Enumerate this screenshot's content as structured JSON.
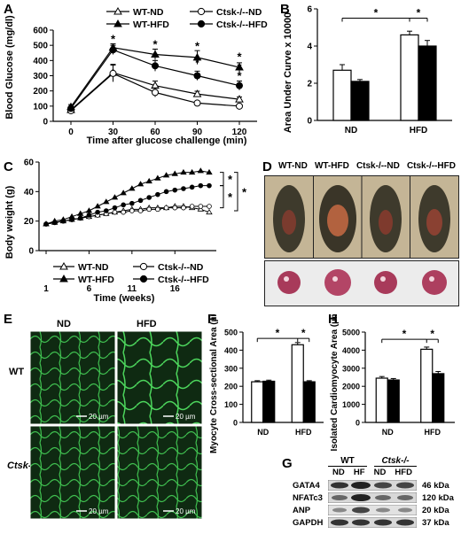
{
  "panels": {
    "A": {
      "label": "A",
      "legend": [
        "WT-ND",
        "WT-HFD",
        "Ctsk-/--ND",
        "Ctsk-/--HFD"
      ],
      "ylabel": "Blood Glucose (mg/dl)",
      "xlabel": "Time after glucose challenge (min)"
    },
    "B": {
      "label": "B",
      "ylabel": "Area Under Curve x 10000"
    },
    "C": {
      "label": "C",
      "ylabel": "Body weight (g)",
      "xlabel": "Time (weeks)",
      "legend": [
        "WT-ND",
        "WT-HFD",
        "Ctsk-/--ND",
        "Ctsk-/--HFD"
      ]
    },
    "D": {
      "label": "D",
      "groups": [
        "WT-ND",
        "WT-HFD",
        "Ctsk-/--ND",
        "Ctsk-/--HFD"
      ]
    },
    "E": {
      "label": "E",
      "cols": [
        "ND",
        "HFD"
      ],
      "rows": [
        "WT",
        "Ctsk-/-"
      ],
      "scale": "20 µm"
    },
    "F": {
      "label": "F",
      "ylabel": "Myocyte Cross-sectional Area (µm²)"
    },
    "G": {
      "label": "G",
      "groups": [
        "WT",
        "Ctsk-/-"
      ],
      "lanes": [
        "ND",
        "HF",
        "ND",
        "HFD"
      ],
      "bands": [
        {
          "name": "GATA4",
          "size": "46 kDa"
        },
        {
          "name": "NFATc3",
          "size": "120 kDa"
        },
        {
          "name": "ANP",
          "size": "20 kDa"
        },
        {
          "name": "GAPDH",
          "size": "37 kDa"
        }
      ]
    },
    "H": {
      "label": "H",
      "ylabel": "Isolated Cardiomyocyte Area (µm²)"
    }
  },
  "chart_data": [
    {
      "id": "A",
      "type": "line",
      "x": [
        0,
        30,
        60,
        90,
        120
      ],
      "xlabel": "Time after glucose challenge (min)",
      "ylabel": "Blood Glucose (mg/dl)",
      "ylim": [
        0,
        600
      ],
      "yticks": [
        0,
        100,
        200,
        300,
        400,
        500,
        600
      ],
      "series": [
        {
          "name": "WT-ND",
          "values": [
            75,
            320,
            235,
            180,
            145
          ],
          "err": [
            12,
            55,
            30,
            18,
            15
          ],
          "marker": "triangle-open"
        },
        {
          "name": "WT-HFD",
          "values": [
            95,
            485,
            440,
            420,
            355
          ],
          "err": [
            15,
            25,
            35,
            45,
            30
          ],
          "marker": "triangle-filled"
        },
        {
          "name": "Ctsk-/--ND",
          "values": [
            70,
            315,
            190,
            120,
            100
          ],
          "err": [
            10,
            55,
            30,
            12,
            10
          ],
          "marker": "circle-open"
        },
        {
          "name": "Ctsk-/--HFD",
          "values": [
            85,
            470,
            365,
            300,
            235
          ],
          "err": [
            12,
            30,
            35,
            30,
            30
          ],
          "marker": "circle-filled"
        }
      ],
      "annotations": [
        "*",
        "*",
        "*",
        "*",
        "*",
        "*",
        "*",
        "*"
      ]
    },
    {
      "id": "B",
      "type": "bar",
      "categories": [
        "ND",
        "HFD"
      ],
      "ylabel": "Area Under Curve x 10000",
      "ylim": [
        0,
        6
      ],
      "yticks": [
        0,
        2,
        4,
        6
      ],
      "series": [
        {
          "values": [
            2.7,
            4.6
          ],
          "err": [
            0.3,
            0.2
          ],
          "fill": "#ffffff"
        },
        {
          "values": [
            2.1,
            4.0
          ],
          "err": [
            0.1,
            0.3
          ],
          "fill": "#000000"
        }
      ],
      "annotations": [
        "*",
        "*"
      ]
    },
    {
      "id": "C",
      "type": "line",
      "x": [
        1,
        2,
        3,
        4,
        5,
        6,
        7,
        8,
        9,
        10,
        11,
        12,
        13,
        14,
        15,
        16,
        17,
        18,
        19,
        20
      ],
      "xticks": [
        1,
        6,
        11,
        16
      ],
      "xlabel": "Time (weeks)",
      "ylabel": "Body weight (g)",
      "ylim": [
        0,
        60
      ],
      "yticks": [
        0,
        20,
        40,
        60
      ],
      "series": [
        {
          "name": "WT-ND",
          "values": [
            18,
            19,
            20,
            21,
            22,
            23,
            24,
            25,
            26,
            27,
            28,
            28,
            29,
            29,
            29,
            30,
            30,
            29,
            28,
            26
          ],
          "marker": "triangle-open"
        },
        {
          "name": "WT-HFD",
          "values": [
            18,
            20,
            21,
            23,
            25,
            27,
            30,
            33,
            36,
            39,
            42,
            45,
            47,
            49,
            51,
            52,
            53,
            53,
            54,
            53
          ],
          "marker": "triangle-filled"
        },
        {
          "name": "Ctsk-/--ND",
          "values": [
            18,
            19,
            20,
            21,
            22,
            23,
            24,
            25,
            26,
            26,
            27,
            27,
            28,
            28,
            29,
            29,
            29,
            30,
            30,
            30
          ],
          "marker": "circle-open"
        },
        {
          "name": "Ctsk-/--HFD",
          "values": [
            18,
            19,
            20,
            21,
            22,
            24,
            26,
            27,
            29,
            31,
            32,
            34,
            36,
            38,
            40,
            41,
            42,
            43,
            44,
            44
          ],
          "marker": "circle-filled"
        }
      ],
      "annotations": [
        "*",
        "*",
        "*"
      ]
    },
    {
      "id": "F",
      "type": "bar",
      "categories": [
        "ND",
        "HFD"
      ],
      "ylabel": "Myocyte Cross-sectional Area (µm²)",
      "ylim": [
        0,
        500
      ],
      "yticks": [
        0,
        100,
        200,
        300,
        400,
        500
      ],
      "series": [
        {
          "values": [
            225,
            430
          ],
          "err": [
            6,
            12
          ],
          "fill": "#ffffff"
        },
        {
          "values": [
            228,
            225
          ],
          "err": [
            6,
            6
          ],
          "fill": "#000000"
        }
      ],
      "annotations": [
        "*",
        "*"
      ]
    },
    {
      "id": "H",
      "type": "bar",
      "categories": [
        "ND",
        "HFD"
      ],
      "ylabel": "Isolated Cardiomyocyte Area (µm²)",
      "ylim": [
        0,
        5000
      ],
      "yticks": [
        0,
        1000,
        2000,
        3000,
        4000,
        5000
      ],
      "series": [
        {
          "values": [
            2450,
            4050
          ],
          "err": [
            90,
            120
          ],
          "fill": "#ffffff"
        },
        {
          "values": [
            2350,
            2700
          ],
          "err": [
            80,
            120
          ],
          "fill": "#000000"
        }
      ],
      "annotations": [
        "*",
        "*"
      ]
    }
  ]
}
